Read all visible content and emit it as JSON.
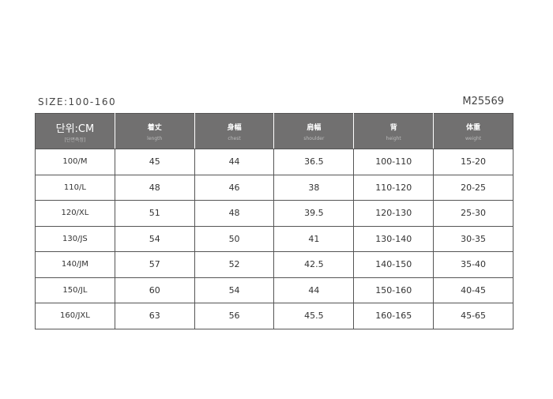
{
  "size_range": "SIZE:100-160",
  "product_code": "M25569",
  "headers": [
    {
      "main": "단위:CM",
      "sub": "[단면측정]"
    },
    {
      "main": "着丈",
      "sub": "length"
    },
    {
      "main": "身幅",
      "sub": "chest"
    },
    {
      "main": "肩幅",
      "sub": "shoulder"
    },
    {
      "main": "背",
      "sub": "height"
    },
    {
      "main": "体重",
      "sub": "weight"
    }
  ],
  "rows": [
    [
      "100/M",
      "45",
      "44",
      "36.5",
      "100-110",
      "15-20"
    ],
    [
      "110/L",
      "48",
      "46",
      "38",
      "110-120",
      "20-25"
    ],
    [
      "120/XL",
      "51",
      "48",
      "39.5",
      "120-130",
      "25-30"
    ],
    [
      "130/JS",
      "54",
      "50",
      "41",
      "130-140",
      "30-35"
    ],
    [
      "140/JM",
      "57",
      "52",
      "42.5",
      "140-150",
      "35-40"
    ],
    [
      "150/JL",
      "60",
      "54",
      "44",
      "150-160",
      "40-45"
    ],
    [
      "160/JXL",
      "63",
      "56",
      "45.5",
      "160-165",
      "45-65"
    ]
  ]
}
